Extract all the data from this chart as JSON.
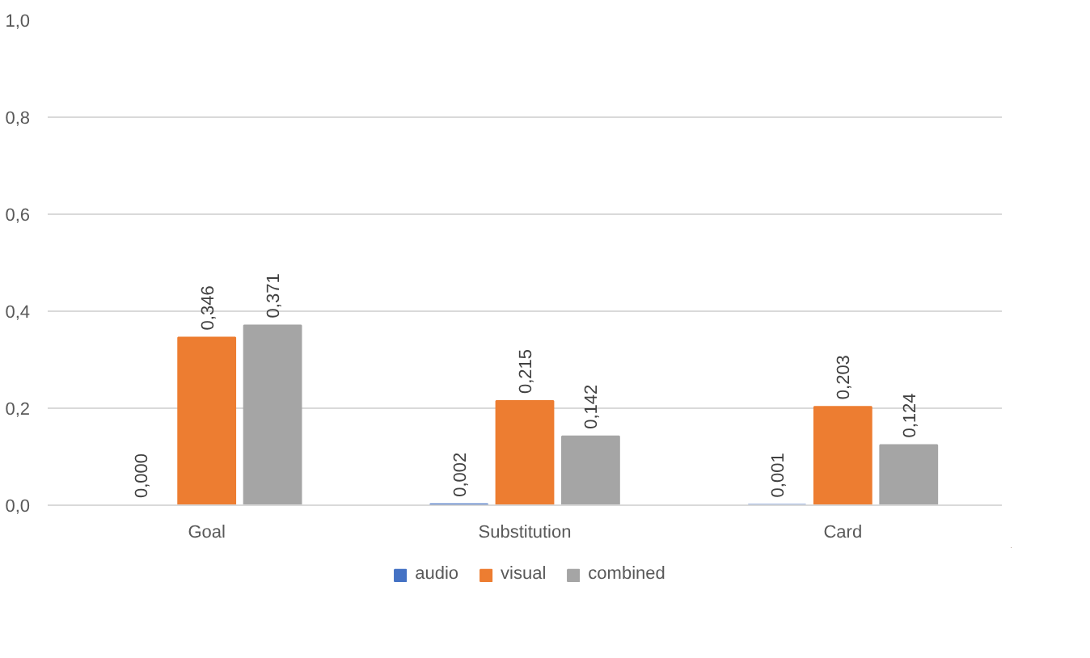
{
  "chart_data": {
    "type": "bar",
    "categories": [
      "Goal",
      "Substitution",
      "Card"
    ],
    "series": [
      {
        "name": "audio",
        "color": "#4472c4",
        "values": [
          0.0,
          0.002,
          0.001
        ],
        "value_labels": [
          "0,000",
          "0,002",
          "0,001"
        ]
      },
      {
        "name": "visual",
        "color": "#ed7d31",
        "values": [
          0.346,
          0.215,
          0.203
        ],
        "value_labels": [
          "0,346",
          "0,215",
          "0,203"
        ]
      },
      {
        "name": "combined",
        "color": "#a5a5a5",
        "values": [
          0.371,
          0.142,
          0.124
        ],
        "value_labels": [
          "0,371",
          "0,142",
          "0,124"
        ]
      }
    ],
    "ylim": [
      0,
      1
    ],
    "yticks": [
      {
        "value": 0,
        "label": "0,0"
      },
      {
        "value": 0.2,
        "label": "0,2"
      },
      {
        "value": 0.4,
        "label": "0,4"
      },
      {
        "value": 0.6,
        "label": "0,6"
      },
      {
        "value": 0.8,
        "label": "0,8"
      },
      {
        "value": 1,
        "label": "1,0"
      }
    ],
    "grid": "y",
    "legend": "bottom"
  }
}
